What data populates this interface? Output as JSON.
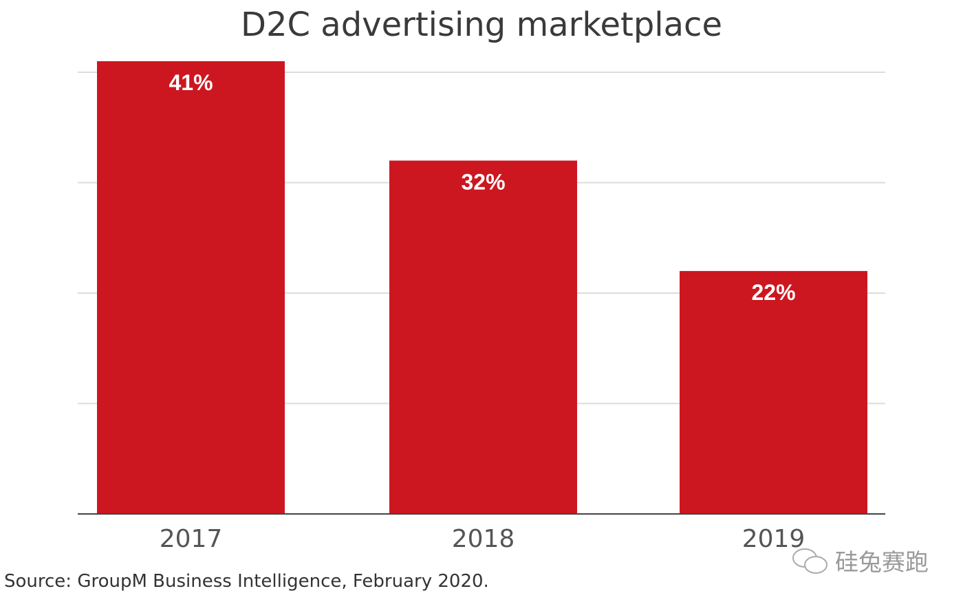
{
  "chart_data": {
    "type": "bar",
    "title": "D2C advertising marketplace",
    "categories": [
      "2017",
      "2018",
      "2019"
    ],
    "values": [
      41,
      32,
      22
    ],
    "data_labels": [
      "41%",
      "32%",
      "22%"
    ],
    "xlabel": "",
    "ylabel": "",
    "ylim": [
      0,
      41
    ],
    "gridlines": [
      10,
      20,
      30,
      40
    ],
    "grid": true,
    "bar_color": "#cc1720"
  },
  "source": "Source: GroupM Business Intelligence, February 2020.",
  "watermark": "硅兔赛跑"
}
